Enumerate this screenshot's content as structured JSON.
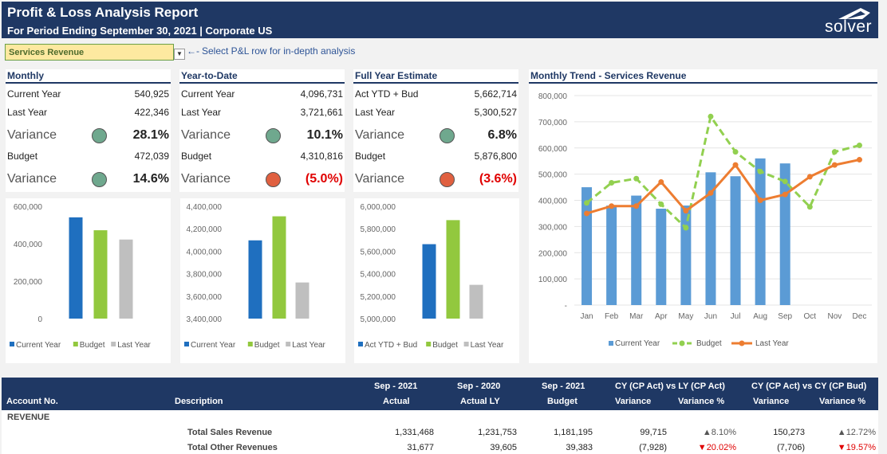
{
  "header": {
    "title": "Profit & Loss Analysis Report",
    "subtitle": "For Period Ending September 30, 2021 | Corporate US",
    "logo": "solver"
  },
  "selector": {
    "value": "Services Revenue",
    "hint": "Select P&L row for in-depth analysis"
  },
  "kpis": [
    {
      "title": "Monthly",
      "row1_label": "Current Year",
      "row1_value": "540,925",
      "row2_label": "Last Year",
      "row2_value": "422,346",
      "var1_label": "Variance",
      "var1_value": "28.1%",
      "var1_status": "green",
      "row3_label": "Budget",
      "row3_value": "472,039",
      "var2_label": "Variance",
      "var2_value": "14.6%",
      "var2_status": "green"
    },
    {
      "title": "Year-to-Date",
      "row1_label": "Current Year",
      "row1_value": "4,096,731",
      "row2_label": "Last Year",
      "row2_value": "3,721,661",
      "var1_label": "Variance",
      "var1_value": "10.1%",
      "var1_status": "green",
      "row3_label": "Budget",
      "row3_value": "4,310,816",
      "var2_label": "Variance",
      "var2_value": "(5.0%)",
      "var2_status": "red"
    },
    {
      "title": "Full Year Estimate",
      "row1_label": "Act YTD + Bud",
      "row1_value": "5,662,714",
      "row2_label": "Last Year",
      "row2_value": "5,300,527",
      "var1_label": "Variance",
      "var1_value": "6.8%",
      "var1_status": "green",
      "row3_label": "Budget",
      "row3_value": "5,876,800",
      "var2_label": "Variance",
      "var2_value": "(3.6%)",
      "var2_status": "red"
    }
  ],
  "colors": {
    "navy": "#1f3864",
    "current": "#1f6fbf",
    "budget": "#92c83e",
    "lastyear": "#bfbfbf",
    "trend_bar": "#5b9bd5",
    "trend_budget": "#92d050",
    "trend_lastyear": "#ed7d31"
  },
  "chart_data": [
    {
      "type": "bar",
      "categories": [
        "Current Year",
        "Budget",
        "Last Year"
      ],
      "values": [
        540925,
        472039,
        422346
      ],
      "ylim": [
        0,
        600000
      ],
      "yticks": [
        "0",
        "200,000",
        "400,000",
        "600,000"
      ],
      "ytick_values": [
        0,
        200000,
        400000,
        600000
      ],
      "legend": [
        "Current Year",
        "Budget",
        "Last Year"
      ]
    },
    {
      "type": "bar",
      "categories": [
        "Current Year",
        "Budget",
        "Last Year"
      ],
      "values": [
        4096731,
        4310816,
        3721661
      ],
      "ylim": [
        3400000,
        4400000
      ],
      "yticks": [
        "3,400,000",
        "3,600,000",
        "3,800,000",
        "4,000,000",
        "4,200,000",
        "4,400,000"
      ],
      "ytick_values": [
        3400000,
        3600000,
        3800000,
        4000000,
        4200000,
        4400000
      ],
      "legend": [
        "Current Year",
        "Budget",
        "Last Year"
      ]
    },
    {
      "type": "bar",
      "categories": [
        "Act YTD + Bud",
        "Budget",
        "Last Year"
      ],
      "values": [
        5662714,
        5876800,
        5300527
      ],
      "ylim": [
        5000000,
        6000000
      ],
      "yticks": [
        "5,000,000",
        "5,200,000",
        "5,400,000",
        "5,600,000",
        "5,800,000",
        "6,000,000"
      ],
      "ytick_values": [
        5000000,
        5200000,
        5400000,
        5600000,
        5800000,
        6000000
      ],
      "legend": [
        "Act YTD + Bud",
        "Budget",
        "Last Year"
      ]
    },
    {
      "type": "bar+line",
      "title": "Monthly Trend - Services Revenue",
      "categories": [
        "Jan",
        "Feb",
        "Mar",
        "Apr",
        "May",
        "Jun",
        "Jul",
        "Aug",
        "Sep",
        "Oct",
        "Nov",
        "Dec"
      ],
      "ylim": [
        0,
        800000
      ],
      "yticks": [
        "-",
        "100,000",
        "200,000",
        "300,000",
        "400,000",
        "500,000",
        "600,000",
        "700,000",
        "800,000"
      ],
      "ytick_values": [
        0,
        100000,
        200000,
        300000,
        400000,
        500000,
        600000,
        700000,
        800000
      ],
      "series": [
        {
          "name": "Current Year",
          "kind": "bar",
          "values": [
            450000,
            380000,
            418000,
            368000,
            380000,
            507000,
            492000,
            560000,
            540925,
            null,
            null,
            null
          ]
        },
        {
          "name": "Budget",
          "kind": "dashed-line",
          "values": [
            390000,
            467000,
            483000,
            385000,
            295000,
            720000,
            585000,
            510000,
            472039,
            375000,
            585000,
            610000
          ]
        },
        {
          "name": "Last Year",
          "kind": "line",
          "values": [
            350000,
            378000,
            378000,
            470000,
            360000,
            428000,
            535000,
            400000,
            422346,
            490000,
            535000,
            555000
          ]
        }
      ],
      "legend": [
        "Current Year",
        "Budget",
        "Last Year"
      ]
    }
  ],
  "table": {
    "headers": {
      "account": "Account No.",
      "description": "Description",
      "col1_top": "Sep - 2021",
      "col1_bottom": "Actual",
      "col2_top": "Sep - 2020",
      "col2_bottom": "Actual LY",
      "col3_top": "Sep - 2021",
      "col3_bottom": "Budget",
      "group1": "CY (CP Act) vs LY (CP Act)",
      "group2": "CY (CP Act) vs CY (CP Bud)",
      "variance": "Variance",
      "variance_pct": "Variance %"
    },
    "section": "REVENUE",
    "rows": [
      {
        "description": "Total Sales Revenue",
        "actual": "1,331,468",
        "actual_ly": "1,231,753",
        "budget": "1,181,195",
        "var1": "99,715",
        "var1_pct": "8.10%",
        "var1_dir": "up",
        "var2": "150,273",
        "var2_pct": "12.72%",
        "var2_dir": "up"
      },
      {
        "description": "Total Other Revenues",
        "actual": "31,677",
        "actual_ly": "39,605",
        "budget": "39,383",
        "var1": "(7,928)",
        "var1_pct": "20.02%",
        "var1_dir": "down",
        "var2": "(7,706)",
        "var2_pct": "19.57%",
        "var2_dir": "down"
      }
    ]
  }
}
